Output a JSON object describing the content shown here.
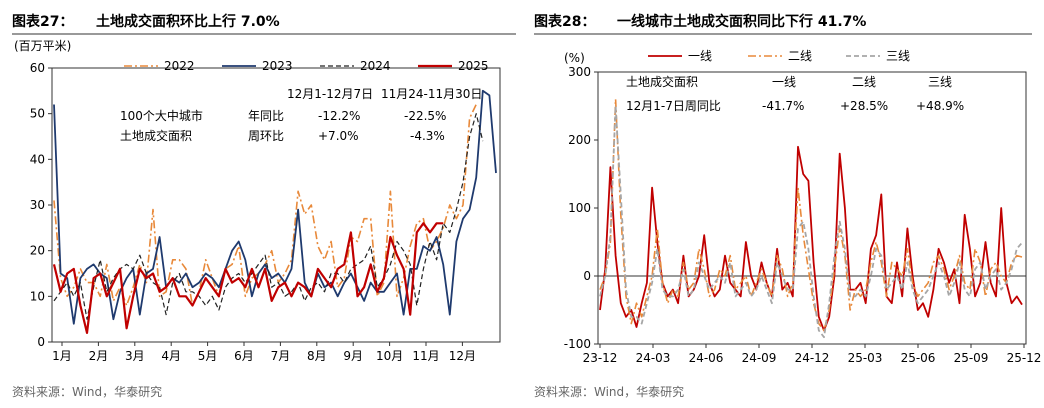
{
  "chart_data": [
    {
      "type": "line",
      "fig_label": "图表27：",
      "title": "土地成交面积环比上行 7.0%",
      "ylabel": "(百万平米)",
      "ylim": [
        0,
        60
      ],
      "yticks": [
        "0",
        "10",
        "20",
        "30",
        "40",
        "50",
        "60"
      ],
      "xticks": [
        "1月",
        "2月",
        "3月",
        "4月",
        "5月",
        "6月",
        "7月",
        "8月",
        "9月",
        "10月",
        "11月",
        "12月"
      ],
      "legend_position": "top",
      "series": [
        {
          "name": "2022",
          "color": "#E8893A",
          "dash": "dashdot",
          "values": [
            31,
            14,
            10,
            12,
            16,
            13,
            13,
            10,
            17,
            9,
            12,
            8,
            12,
            17,
            13,
            29,
            10,
            11,
            18,
            18,
            16,
            8,
            11,
            18,
            14,
            10,
            16,
            17,
            21,
            10,
            14,
            15,
            17,
            20,
            13,
            15,
            18,
            33,
            28,
            30,
            21,
            18,
            22,
            12,
            14,
            23,
            22,
            27,
            27,
            10,
            13,
            33,
            10,
            14,
            21,
            26,
            27,
            20,
            22,
            25,
            30,
            27,
            30,
            49,
            52
          ]
        },
        {
          "name": "2023",
          "color": "#1F3A6E",
          "dash": "solid",
          "values": [
            52,
            15,
            14,
            4,
            14,
            16,
            17,
            15,
            14,
            5,
            11,
            14,
            16,
            6,
            15,
            16,
            23,
            12,
            14,
            13,
            15,
            12,
            13,
            15,
            14,
            12,
            16,
            20,
            22,
            18,
            10,
            15,
            17,
            14,
            15,
            13,
            16,
            29,
            13,
            10,
            15,
            12,
            13,
            10,
            13,
            15,
            12,
            9,
            13,
            11,
            11,
            13,
            15,
            6,
            16,
            16,
            21,
            20,
            23,
            17,
            6,
            22,
            27,
            29,
            36,
            55,
            54,
            37
          ]
        },
        {
          "name": "2024",
          "color": "#222222",
          "dash": "dashed",
          "values": [
            9,
            11,
            13,
            10,
            13,
            5,
            12,
            18,
            11,
            14,
            16,
            17,
            16,
            19,
            15,
            13,
            12,
            6,
            13,
            15,
            11,
            11,
            10,
            8,
            10,
            7,
            12,
            14,
            15,
            13,
            15,
            17,
            19,
            12,
            13,
            10,
            11,
            13,
            9,
            12,
            13,
            11,
            15,
            15,
            13,
            16,
            17,
            18,
            21,
            12,
            14,
            17,
            22,
            20,
            17,
            8,
            16,
            22,
            18,
            26,
            24,
            29,
            35,
            45,
            50,
            44
          ]
        },
        {
          "name": "2025",
          "color": "#C00000",
          "dash": "solid",
          "values": [
            17,
            11,
            15,
            16,
            8,
            2,
            14,
            15,
            10,
            13,
            16,
            3,
            10,
            16,
            14,
            15,
            11,
            12,
            14,
            10,
            10,
            8,
            11,
            14,
            12,
            10,
            16,
            13,
            14,
            12,
            16,
            12,
            16,
            9,
            12,
            13,
            10,
            13,
            12,
            10,
            16,
            14,
            12,
            16,
            17,
            24,
            10,
            12,
            17,
            11,
            14,
            23,
            19,
            16,
            6,
            24,
            26,
            24,
            26,
            26
          ]
        }
      ],
      "annotation": {
        "row_label_1": "100个大中城市",
        "row_label_2": "土地成交面积",
        "col1": "12月1-12月7日",
        "col2": "11月24-11月30日",
        "r1_label": "年同比",
        "r1_v1": "-12.2%",
        "r1_v2": "-22.5%",
        "r2_label": "周环比",
        "r2_v1": "+7.0%",
        "r2_v2": "-4.3%"
      },
      "source": "资料来源：Wind，华泰研究"
    },
    {
      "type": "line",
      "fig_label": "图表28：",
      "title": "一线城市土地成交面积同比下行 41.7%",
      "ylabel": "(%)",
      "ylim": [
        -100,
        300
      ],
      "yticks": [
        "-100",
        "0",
        "100",
        "200",
        "300"
      ],
      "xticks": [
        "23-12",
        "24-03",
        "24-06",
        "24-09",
        "24-12",
        "25-03",
        "25-06",
        "25-09",
        "25-12"
      ],
      "legend_position": "top",
      "series": [
        {
          "name": "一线",
          "color": "#C00000",
          "dash": "solid",
          "values": [
            -50,
            10,
            160,
            30,
            -40,
            -60,
            -50,
            -75,
            -40,
            -10,
            130,
            50,
            -10,
            -30,
            -20,
            -40,
            30,
            -30,
            -20,
            0,
            60,
            -10,
            -30,
            -20,
            30,
            -10,
            -20,
            -30,
            50,
            0,
            -20,
            20,
            -10,
            -30,
            40,
            -20,
            -10,
            -30,
            190,
            150,
            140,
            20,
            -60,
            -80,
            -60,
            0,
            180,
            100,
            -20,
            -20,
            -10,
            -40,
            40,
            60,
            120,
            -30,
            -40,
            20,
            -30,
            70,
            0,
            -50,
            -40,
            -60,
            -20,
            40,
            20,
            -10,
            10,
            -40,
            90,
            40,
            -30,
            -10,
            50,
            -10,
            -30,
            100,
            -10,
            -40,
            -30,
            -42
          ]
        },
        {
          "name": "二线",
          "color": "#E8893A",
          "dash": "dashdot",
          "values": [
            -20,
            0,
            50,
            260,
            90,
            -30,
            -70,
            -40,
            -60,
            -30,
            0,
            70,
            -10,
            -40,
            -20,
            -30,
            20,
            -20,
            -10,
            40,
            10,
            -30,
            -20,
            10,
            0,
            30,
            -20,
            -10,
            0,
            -30,
            -10,
            10,
            -10,
            -30,
            30,
            10,
            -30,
            -10,
            130,
            60,
            10,
            -40,
            -70,
            -80,
            -50,
            10,
            70,
            30,
            -50,
            -20,
            -30,
            -20,
            20,
            50,
            20,
            -30,
            20,
            10,
            0,
            40,
            -10,
            -30,
            -20,
            -10,
            20,
            30,
            10,
            -20,
            0,
            30,
            -10,
            -20,
            40,
            20,
            -30,
            10,
            20,
            0,
            -10,
            20,
            30,
            28
          ]
        },
        {
          "name": "三线",
          "color": "#A6A6A6",
          "dash": "dashed",
          "values": [
            -30,
            0,
            60,
            250,
            120,
            -20,
            -60,
            -60,
            -70,
            -40,
            -10,
            40,
            -20,
            -30,
            -30,
            -20,
            10,
            -30,
            -20,
            20,
            0,
            -20,
            -10,
            0,
            -10,
            20,
            -30,
            -20,
            -10,
            -30,
            -20,
            0,
            -20,
            -40,
            20,
            0,
            -20,
            -20,
            70,
            80,
            40,
            -30,
            -80,
            -90,
            -40,
            30,
            80,
            40,
            -30,
            -30,
            -20,
            -30,
            0,
            40,
            30,
            -20,
            -10,
            0,
            -20,
            20,
            -20,
            -40,
            -30,
            -20,
            0,
            20,
            0,
            -30,
            -10,
            20,
            -20,
            -30,
            10,
            20,
            -20,
            0,
            10,
            -20,
            -10,
            10,
            40,
            49
          ]
        }
      ],
      "annotation": {
        "row_label_1": "土地成交面积",
        "row_label_2": "12月1-7日周同比",
        "c1": "一线",
        "c2": "二线",
        "c3": "三线",
        "v1": "-41.7%",
        "v2": "+28.5%",
        "v3": "+48.9%"
      },
      "source": "资料来源：Wind，华泰研究"
    }
  ]
}
